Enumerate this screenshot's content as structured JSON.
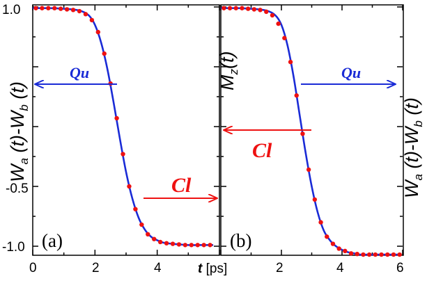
{
  "chart_data": [
    {
      "type": "line",
      "panel_label": "(a)",
      "ylabel": "W_a (t)-W_b (t)",
      "xlabel": "t [ps]",
      "xlim": [
        0,
        6
      ],
      "ylim": [
        -1.1,
        1.05
      ],
      "x_ticks": [
        "0",
        "2",
        "4"
      ],
      "y_ticks": [
        "1.0",
        "-0.5",
        "-1.0"
      ],
      "y_tick_values": [
        1.0,
        -0.5,
        -1.0
      ],
      "series": [
        {
          "name": "",
          "style": "line",
          "color": "#1a2bd6",
          "x": [
            0,
            0.5,
            1.0,
            1.5,
            1.8,
            2.0,
            2.2,
            2.4,
            2.6,
            2.8,
            3.0,
            3.2,
            3.4,
            3.6,
            3.8,
            4.0,
            4.2,
            4.5,
            5.0,
            5.5,
            5.8
          ],
          "y": [
            0.99,
            0.99,
            0.985,
            0.97,
            0.93,
            0.85,
            0.7,
            0.48,
            0.2,
            -0.1,
            -0.38,
            -0.6,
            -0.76,
            -0.86,
            -0.92,
            -0.95,
            -0.97,
            -0.98,
            -0.99,
            -0.99,
            -0.99
          ]
        },
        {
          "name": "",
          "style": "markers",
          "color": "#ee1111",
          "x": [
            0.1,
            0.3,
            0.5,
            0.7,
            0.9,
            1.1,
            1.3,
            1.5,
            1.7,
            1.9,
            2.1,
            2.3,
            2.5,
            2.7,
            2.9,
            3.1,
            3.3,
            3.5,
            3.7,
            3.9,
            4.1,
            4.3,
            4.5,
            4.7,
            4.9,
            5.1,
            5.3,
            5.5,
            5.7
          ],
          "y": [
            0.99,
            0.99,
            0.99,
            0.99,
            0.985,
            0.98,
            0.975,
            0.965,
            0.94,
            0.89,
            0.79,
            0.61,
            0.36,
            0.07,
            -0.23,
            -0.5,
            -0.69,
            -0.82,
            -0.9,
            -0.94,
            -0.965,
            -0.975,
            -0.98,
            -0.985,
            -0.99,
            -0.99,
            -0.99,
            -0.99,
            -0.99
          ]
        }
      ],
      "annotations": [
        {
          "text": "Qu",
          "color": "#1a2bd6",
          "arrow": "left"
        },
        {
          "text": "Cl",
          "color": "#ee1111",
          "arrow": "right"
        }
      ]
    },
    {
      "type": "line",
      "panel_label": "(b)",
      "ylabel": "M_z(t)",
      "ylabel_right": "W_a (t)-W_b (t)",
      "xlim": [
        0,
        6
      ],
      "ylim": [
        -1.1,
        1.05
      ],
      "x_ticks": [
        "2",
        "4",
        "6"
      ],
      "series": [
        {
          "name": "",
          "style": "line",
          "color": "#1a2bd6",
          "x": [
            0,
            0.5,
            1.0,
            1.5,
            1.8,
            2.0,
            2.2,
            2.4,
            2.6,
            2.8,
            3.0,
            3.2,
            3.4,
            3.6,
            3.8,
            4.0,
            4.2,
            4.4,
            4.6,
            5.0,
            5.5,
            5.95
          ],
          "y": [
            0.99,
            0.99,
            0.985,
            0.97,
            0.93,
            0.85,
            0.68,
            0.42,
            0.1,
            -0.22,
            -0.5,
            -0.72,
            -0.87,
            -0.95,
            -1.0,
            -1.03,
            -1.05,
            -1.06,
            -1.07,
            -1.07,
            -1.07,
            -1.07
          ]
        },
        {
          "name": "",
          "style": "markers",
          "color": "#ee1111",
          "x": [
            0.1,
            0.3,
            0.5,
            0.7,
            0.9,
            1.1,
            1.3,
            1.5,
            1.7,
            1.9,
            2.1,
            2.3,
            2.5,
            2.7,
            2.9,
            3.1,
            3.3,
            3.5,
            3.7,
            3.9,
            4.1,
            4.3,
            4.5,
            4.7,
            4.9,
            5.1,
            5.3,
            5.5,
            5.7,
            5.9
          ],
          "y": [
            0.99,
            0.99,
            0.99,
            0.99,
            0.985,
            0.98,
            0.975,
            0.96,
            0.93,
            0.86,
            0.74,
            0.54,
            0.26,
            -0.06,
            -0.36,
            -0.61,
            -0.8,
            -0.92,
            -0.98,
            -1.02,
            -1.04,
            -1.06,
            -1.065,
            -1.07,
            -1.07,
            -1.07,
            -1.07,
            -1.07,
            -1.07,
            -1.07
          ]
        }
      ],
      "annotations": [
        {
          "text": "Qu",
          "color": "#1a2bd6",
          "arrow": "right"
        },
        {
          "text": "Cl",
          "color": "#ee1111",
          "arrow": "left"
        }
      ]
    }
  ]
}
